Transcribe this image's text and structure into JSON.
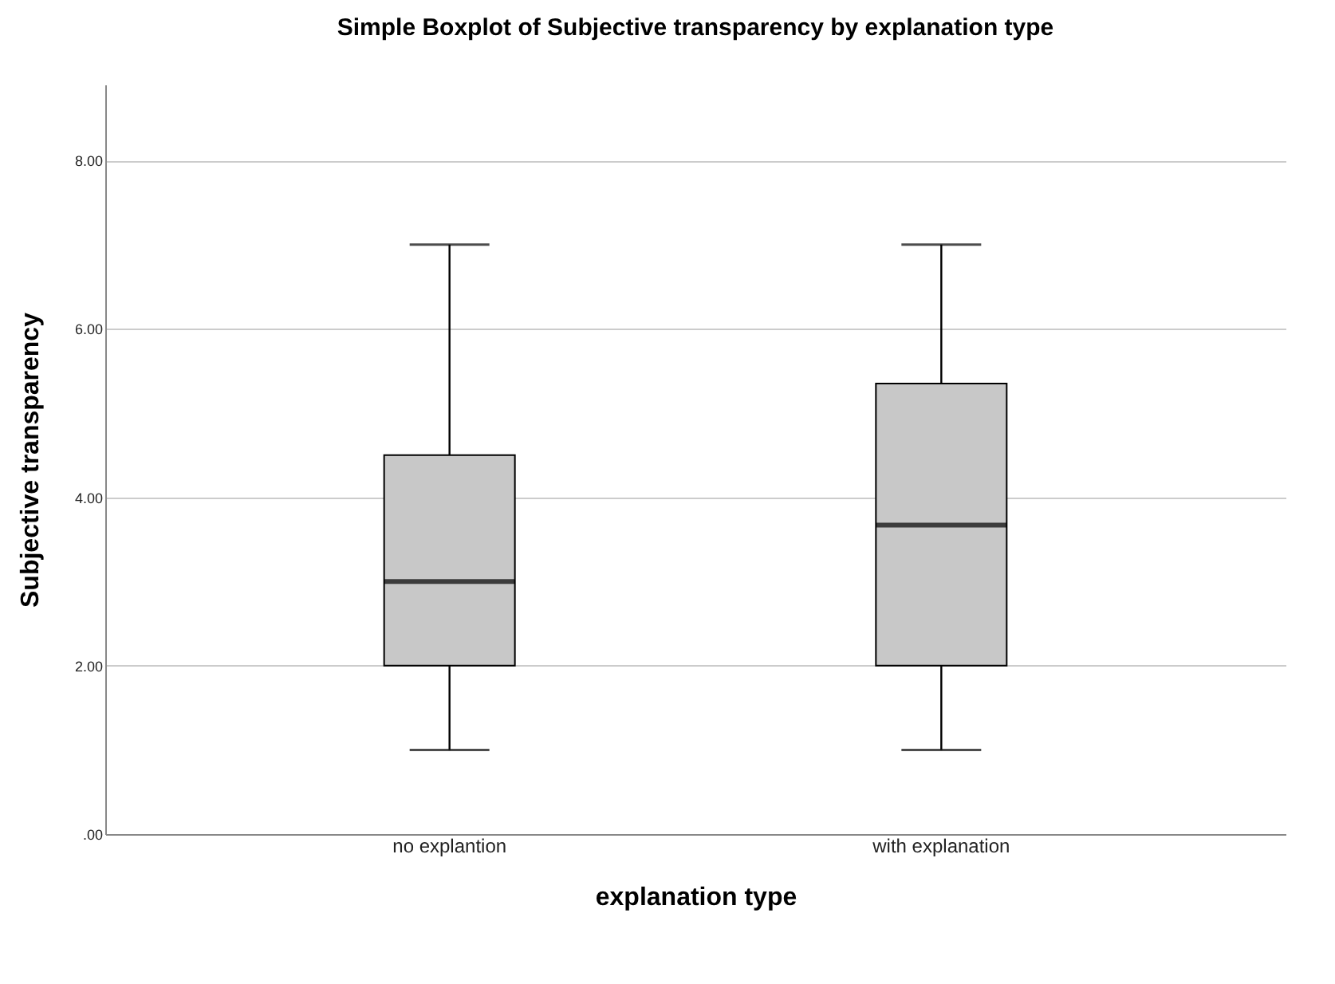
{
  "chart_data": {
    "type": "box",
    "title": "Simple Boxplot of Subjective transparency by explanation type",
    "xlabel": "explanation type",
    "ylabel": "Subjective transparency",
    "categories": [
      "no explantion",
      "with explanation"
    ],
    "series": [
      {
        "color": "#c8c8c8",
        "boxes": [
          {
            "low": 1,
            "q1": 2,
            "median": 3,
            "q3": 4.5,
            "high": 7
          },
          {
            "low": 1,
            "q1": 2,
            "median": 3.67,
            "q3": 5.35,
            "high": 7
          }
        ]
      }
    ],
    "ylim": [
      0,
      8.9
    ],
    "yticks": [
      {
        "value": 0,
        "label": ".00"
      },
      {
        "value": 2,
        "label": "2.00"
      },
      {
        "value": 4,
        "label": "4.00"
      },
      {
        "value": 6,
        "label": "6.00"
      },
      {
        "value": 8,
        "label": "8.00"
      }
    ],
    "grid": "y"
  }
}
